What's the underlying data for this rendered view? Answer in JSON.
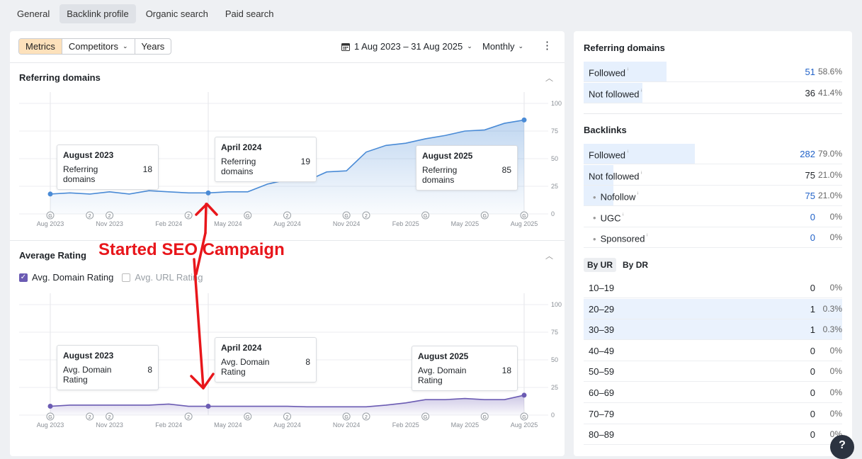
{
  "tabs": [
    {
      "label": "General",
      "active": false
    },
    {
      "label": "Backlink profile",
      "active": true
    },
    {
      "label": "Organic search",
      "active": false
    },
    {
      "label": "Paid search",
      "active": false
    }
  ],
  "toolbar": {
    "metrics": "Metrics",
    "competitors": "Competitors",
    "years": "Years",
    "date_range": "1 Aug 2023 – 31 Aug 2025",
    "period": "Monthly"
  },
  "ref_chart": {
    "title": "Referring domains",
    "y_ticks": [
      "100",
      "75",
      "50",
      "25",
      "0"
    ],
    "x_ticks": [
      "Aug 2023",
      "Nov 2023",
      "Feb 2024",
      "May 2024",
      "Aug 2024",
      "Nov 2024",
      "Feb 2025",
      "May 2025",
      "Aug 2025"
    ],
    "tooltips": [
      {
        "title": "August 2023",
        "label": "Referring domains",
        "value": "18"
      },
      {
        "title": "April 2024",
        "label": "Referring domains",
        "value": "19"
      },
      {
        "title": "August 2025",
        "label": "Referring domains",
        "value": "85"
      }
    ]
  },
  "rating_chart": {
    "title": "Average Rating",
    "checks": {
      "domain": "Avg. Domain Rating",
      "url": "Avg. URL Rating"
    },
    "y_ticks": [
      "100",
      "75",
      "50",
      "25",
      "0"
    ],
    "x_ticks": [
      "Aug 2023",
      "Nov 2023",
      "Feb 2024",
      "May 2024",
      "Aug 2024",
      "Nov 2024",
      "Feb 2025",
      "May 2025",
      "Aug 2025"
    ],
    "tooltips": [
      {
        "title": "August 2023",
        "label": "Avg. Domain Rating",
        "value": "8"
      },
      {
        "title": "April 2024",
        "label": "Avg. Domain Rating",
        "value": "8"
      },
      {
        "title": "August 2025",
        "label": "Avg. Domain Rating",
        "value": "18"
      }
    ]
  },
  "chart_data": [
    {
      "type": "area",
      "title": "Referring domains",
      "x": [
        "Aug 2023",
        "Sep 2023",
        "Oct 2023",
        "Nov 2023",
        "Dec 2023",
        "Jan 2024",
        "Feb 2024",
        "Mar 2024",
        "Apr 2024",
        "May 2024",
        "Jun 2024",
        "Jul 2024",
        "Aug 2024",
        "Sep 2024",
        "Oct 2024",
        "Nov 2024",
        "Dec 2024",
        "Jan 2025",
        "Feb 2025",
        "Mar 2025",
        "Apr 2025",
        "May 2025",
        "Jun 2025",
        "Jul 2025",
        "Aug 2025"
      ],
      "values": [
        18,
        19,
        18,
        20,
        18,
        21,
        20,
        19,
        19,
        20,
        20,
        27,
        31,
        30,
        38,
        39,
        56,
        62,
        64,
        68,
        71,
        75,
        76,
        82,
        85
      ],
      "ylim": [
        0,
        100
      ],
      "color": "#4a8bd6",
      "markers": [
        {
          "label": "G",
          "index": 0
        },
        {
          "label": "2",
          "index": 2
        },
        {
          "label": "2",
          "index": 3
        },
        {
          "label": "2",
          "index": 7
        },
        {
          "label": "G",
          "index": 10
        },
        {
          "label": "2",
          "index": 12
        },
        {
          "label": "G",
          "index": 15
        },
        {
          "label": "2",
          "index": 16
        },
        {
          "label": "G",
          "index": 19
        },
        {
          "label": "G",
          "index": 22
        },
        {
          "label": "G",
          "index": 24
        }
      ]
    },
    {
      "type": "area",
      "title": "Average Rating",
      "x": [
        "Aug 2023",
        "Sep 2023",
        "Oct 2023",
        "Nov 2023",
        "Dec 2023",
        "Jan 2024",
        "Feb 2024",
        "Mar 2024",
        "Apr 2024",
        "May 2024",
        "Jun 2024",
        "Jul 2024",
        "Aug 2024",
        "Sep 2024",
        "Oct 2024",
        "Nov 2024",
        "Dec 2024",
        "Jan 2025",
        "Feb 2025",
        "Mar 2025",
        "Apr 2025",
        "May 2025",
        "Jun 2025",
        "Jul 2025",
        "Aug 2025"
      ],
      "values": [
        8,
        9,
        9,
        9,
        9,
        9,
        10,
        8,
        8,
        8,
        8,
        8,
        8,
        7.5,
        7.5,
        7.5,
        7.5,
        9,
        11,
        14,
        14,
        15,
        14,
        14,
        18
      ],
      "ylim": [
        0,
        100
      ],
      "color": "#6b5bb3",
      "markers": [
        {
          "label": "G",
          "index": 0
        },
        {
          "label": "2",
          "index": 2
        },
        {
          "label": "2",
          "index": 3
        },
        {
          "label": "2",
          "index": 7
        },
        {
          "label": "G",
          "index": 10
        },
        {
          "label": "2",
          "index": 12
        },
        {
          "label": "G",
          "index": 15
        },
        {
          "label": "2",
          "index": 16
        },
        {
          "label": "G",
          "index": 19
        },
        {
          "label": "G",
          "index": 22
        },
        {
          "label": "G",
          "index": 24
        }
      ]
    }
  ],
  "annotation": {
    "text": "Started SEO Campaign",
    "color": "#e8161b"
  },
  "right": {
    "ref_title": "Referring domains",
    "ref_rows": [
      {
        "label": "Followed",
        "value": "51",
        "pct": "58.6%",
        "bar": 58.6
      },
      {
        "label": "Not followed",
        "value": "36",
        "pct": "41.4%",
        "bar": 41.4
      }
    ],
    "bl_title": "Backlinks",
    "bl_rows": [
      {
        "label": "Followed",
        "value": "282",
        "pct": "79.0%",
        "bar": 79.0,
        "sub": false,
        "link": true
      },
      {
        "label": "Not followed",
        "value": "75",
        "pct": "21.0%",
        "bar": 21.0,
        "sub": false,
        "link": false
      },
      {
        "label": "Nofollow",
        "value": "75",
        "pct": "21.0%",
        "bar": 21.0,
        "sub": true,
        "link": true
      },
      {
        "label": "UGC",
        "value": "0",
        "pct": "0%",
        "bar": 0,
        "sub": true,
        "link": true
      },
      {
        "label": "Sponsored",
        "value": "0",
        "pct": "0%",
        "bar": 0,
        "sub": true,
        "link": true
      }
    ],
    "by_tabs": [
      "By UR",
      "By DR"
    ],
    "ur_rows": [
      {
        "label": "10–19",
        "value": "0",
        "pct": "0%",
        "highlight": false
      },
      {
        "label": "20–29",
        "value": "1",
        "pct": "0.3%",
        "highlight": true
      },
      {
        "label": "30–39",
        "value": "1",
        "pct": "0.3%",
        "highlight": true
      },
      {
        "label": "40–49",
        "value": "0",
        "pct": "0%",
        "highlight": false
      },
      {
        "label": "50–59",
        "value": "0",
        "pct": "0%",
        "highlight": false
      },
      {
        "label": "60–69",
        "value": "0",
        "pct": "0%",
        "highlight": false
      },
      {
        "label": "70–79",
        "value": "0",
        "pct": "0%",
        "highlight": false
      },
      {
        "label": "80–89",
        "value": "0",
        "pct": "0%",
        "highlight": false
      }
    ]
  },
  "help_label": "?"
}
